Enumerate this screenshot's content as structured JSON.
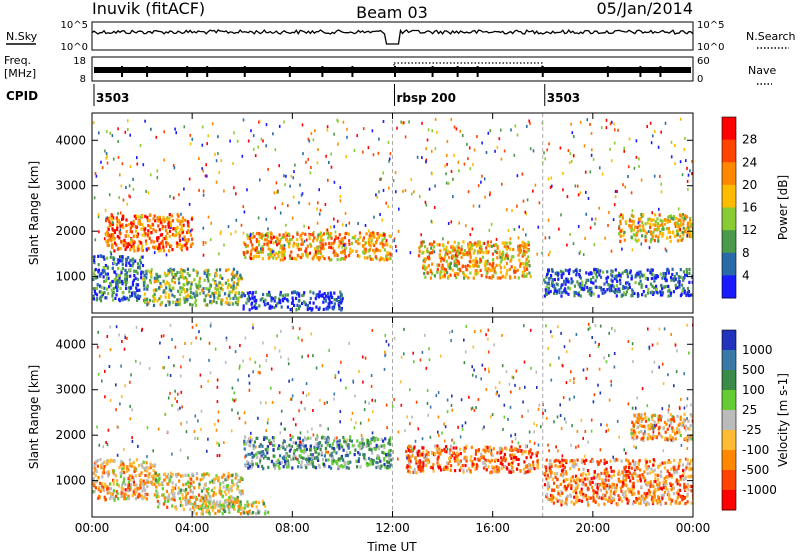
{
  "header": {
    "station": "Inuvik (fitACF)",
    "beam": "Beam 03",
    "date": "05/Jan/2014"
  },
  "top_panels": {
    "nsky_label": "N.Sky",
    "nsearch_label": "N.Search",
    "nsky_ticks": [
      "10^5",
      "10^0"
    ],
    "nsearch_ticks": [
      "10^5",
      "10^0"
    ],
    "freq_label": "Freq.",
    "freq_unit": "[MHz]",
    "freq_ticks": [
      "18",
      "8"
    ],
    "nave_label": "Nave",
    "nave_ticks": [
      "60",
      "0"
    ],
    "cpid_label": "CPID",
    "cpid_segments": [
      {
        "label": "3503",
        "start": 0.0
      },
      {
        "label": "rbsp 200",
        "start": 12.0
      },
      {
        "label": "3503",
        "start": 18.0
      }
    ]
  },
  "chart_data": [
    {
      "type": "heatmap",
      "title": "",
      "ylabel": "Slant Range [km]",
      "xlabel": "Time UT",
      "xlim": [
        0,
        24
      ],
      "ylim": [
        200,
        4600
      ],
      "y_ticks": [
        1000,
        2000,
        3000,
        4000
      ],
      "x_ticks": [
        "00:00",
        "04:00",
        "08:00",
        "12:00",
        "16:00",
        "20:00",
        "00:00"
      ],
      "colorbar": {
        "label": "Power [dB]",
        "ticks": [
          "28",
          "24",
          "20",
          "16",
          "12",
          "8",
          "4"
        ],
        "colors": [
          "#ff0000",
          "#ff4400",
          "#ff8800",
          "#ffbb00",
          "#88cc33",
          "#4b9a4b",
          "#2a6aa8",
          "#1a1aff"
        ]
      },
      "scatter_regions": [
        {
          "t0": 0.0,
          "t1": 2.0,
          "r0": 500,
          "r1": 1500,
          "level": 0.8
        },
        {
          "t0": 2.0,
          "t1": 6.0,
          "r0": 400,
          "r1": 1200,
          "level": 0.6
        },
        {
          "t0": 6.0,
          "t1": 10.0,
          "r0": 300,
          "r1": 700,
          "level": 0.9
        },
        {
          "t0": 6.0,
          "t1": 11.9,
          "r0": 1400,
          "r1": 2000,
          "level": 0.35
        },
        {
          "t0": 0.5,
          "t1": 4.0,
          "r0": 1600,
          "r1": 2400,
          "level": 0.25
        },
        {
          "t0": 13.0,
          "t1": 17.5,
          "r0": 1000,
          "r1": 1800,
          "level": 0.4
        },
        {
          "t0": 18.0,
          "t1": 24.0,
          "r0": 600,
          "r1": 1200,
          "level": 0.85
        },
        {
          "t0": 21.0,
          "t1": 24.0,
          "r0": 1800,
          "r1": 2400,
          "level": 0.45
        }
      ]
    },
    {
      "type": "heatmap",
      "title": "",
      "ylabel": "Slant Range [km]",
      "xlabel": "Time UT",
      "xlim": [
        0,
        24
      ],
      "ylim": [
        200,
        4600
      ],
      "y_ticks": [
        1000,
        2000,
        3000,
        4000
      ],
      "x_ticks": [
        "00:00",
        "04:00",
        "08:00",
        "12:00",
        "16:00",
        "20:00",
        "00:00"
      ],
      "colorbar": {
        "label": "Velocity [m s-1]",
        "ticks": [
          "1000",
          "500",
          "100",
          "25",
          "-25",
          "-100",
          "-500",
          "-1000"
        ],
        "colors": [
          "#2233bb",
          "#3a78a8",
          "#3a8a4a",
          "#66cc33",
          "#bbbbbb",
          "#ffbb33",
          "#ff8800",
          "#ff4400",
          "#ff0000"
        ]
      },
      "scatter_regions": [
        {
          "t0": 0.0,
          "t1": 2.5,
          "r0": 600,
          "r1": 1500,
          "level": 0.65
        },
        {
          "t0": 2.5,
          "t1": 6.0,
          "r0": 400,
          "r1": 1200,
          "level": 0.55
        },
        {
          "t0": 4.0,
          "t1": 7.0,
          "r0": 300,
          "r1": 600,
          "level": 0.5
        },
        {
          "t0": 6.0,
          "t1": 11.9,
          "r0": 1300,
          "r1": 2000,
          "level": 0.3
        },
        {
          "t0": 12.5,
          "t1": 17.8,
          "r0": 1200,
          "r1": 1800,
          "level": 0.75
        },
        {
          "t0": 18.0,
          "t1": 24.0,
          "r0": 500,
          "r1": 1500,
          "level": 0.72
        },
        {
          "t0": 21.5,
          "t1": 24.0,
          "r0": 1900,
          "r1": 2500,
          "level": 0.65
        }
      ]
    }
  ]
}
